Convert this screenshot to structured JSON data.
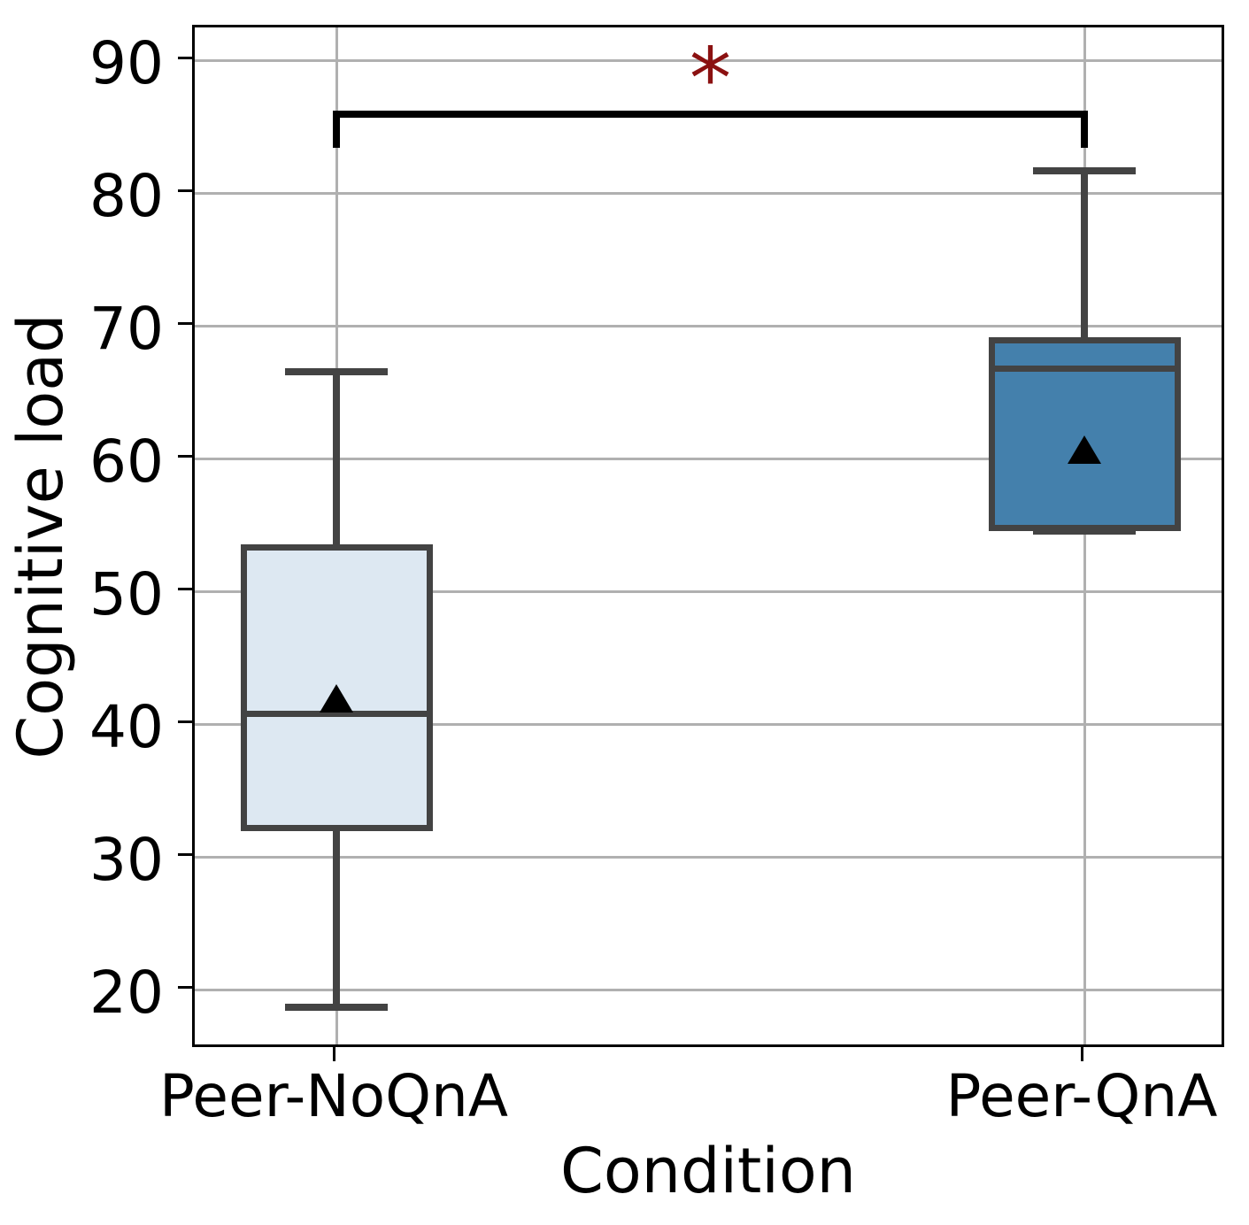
{
  "chart_data": {
    "type": "box",
    "title": "",
    "xlabel": "Condition",
    "ylabel": "Cognitive load",
    "categories": [
      "Peer-NoQnA",
      "Peer-QnA"
    ],
    "ylim": [
      15.5,
      92.5
    ],
    "yticks": [
      20,
      30,
      40,
      50,
      60,
      70,
      80,
      90
    ],
    "grid": true,
    "legend": "none",
    "series": [
      {
        "name": "Peer-NoQnA",
        "whisker_low": 18.7,
        "q1": 32.0,
        "median": 40.8,
        "mean": 42.0,
        "q3": 53.6,
        "whisker_high": 66.6,
        "fill_color": "#dde8f2"
      },
      {
        "name": "Peer-QnA",
        "whisker_low": 54.6,
        "q1": 54.6,
        "median": 66.8,
        "mean": 60.7,
        "q3": 69.2,
        "whisker_high": 81.7,
        "fill_color": "#4480ac"
      }
    ],
    "mean_marker": "triangle-up",
    "significance": {
      "label": "*",
      "between": [
        "Peer-NoQnA",
        "Peer-QnA"
      ],
      "bar_y": 86.0,
      "tick_drop": 2.3,
      "label_y": 89.3,
      "label_color": "#8b1111",
      "bar_color": "#000000"
    },
    "colors": {
      "box_edge": "#434343",
      "whisker": "#434343",
      "median": "#434343",
      "mean_marker": "#000000",
      "gridline": "#b0b0b0",
      "spine": "#000000",
      "background": "#ffffff"
    }
  }
}
